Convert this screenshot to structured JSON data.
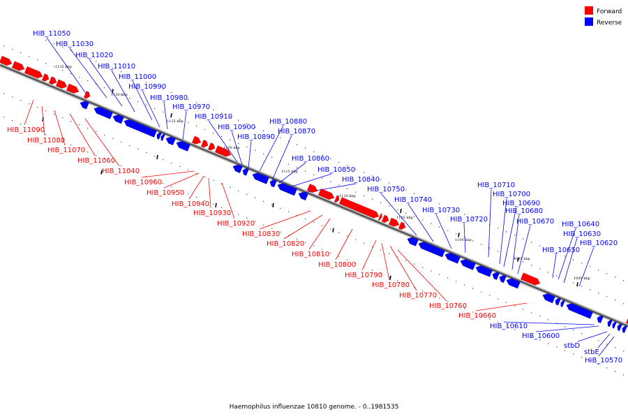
{
  "legend": [
    {
      "label": "Forward",
      "color": "#ff0000"
    },
    {
      "label": "Reverse",
      "color": "#0000ff"
    }
  ],
  "caption": "Haemophilus influenzae 10810 genome. - 0..1981535",
  "ticks": [
    "1135 kbp",
    "1130 kbp",
    "1125 kbp",
    "1120 kbp",
    "1115 kbp",
    "1110 kbp",
    "1105 kbp",
    "1100 kbp",
    "1095 kbp",
    "1090 kbp"
  ],
  "forward_labels": [
    "HIB_11090",
    "HIB_11080",
    "HIB_11070",
    "HIB_11060",
    "HIB_11040",
    "HIB_10960",
    "HIB_10950",
    "HIB_10940",
    "HIB_10930",
    "HIB_10920",
    "HIB_10830",
    "HIB_10820",
    "HIB_10810",
    "HIB_10800",
    "HIB_10790",
    "HIB_10780",
    "HIB_10770",
    "HIB_10760",
    "HIB_10660"
  ],
  "reverse_labels": [
    "HIB_11050",
    "HIB_11030",
    "HIB_11020",
    "HIB_11010",
    "HIB_11000",
    "HIB_10990",
    "HIB_10980",
    "HIB_10970",
    "HIB_10910",
    "HIB_10900",
    "HIB_10890",
    "HIB_10880",
    "HIB_10870",
    "HIB_10860",
    "HIB_10850",
    "HIB_10840",
    "HIB_10750",
    "HIB_10740",
    "HIB_10730",
    "HIB_10720",
    "HIB_10710",
    "HIB_10700",
    "HIB_10690",
    "HIB_10680",
    "HIB_10670",
    "HIB_10650",
    "HIB_10640",
    "HIB_10630",
    "HIB_10620",
    "HIB_10610",
    "HIB_10600",
    "stbD",
    "stbE",
    "HIB_10570"
  ]
}
